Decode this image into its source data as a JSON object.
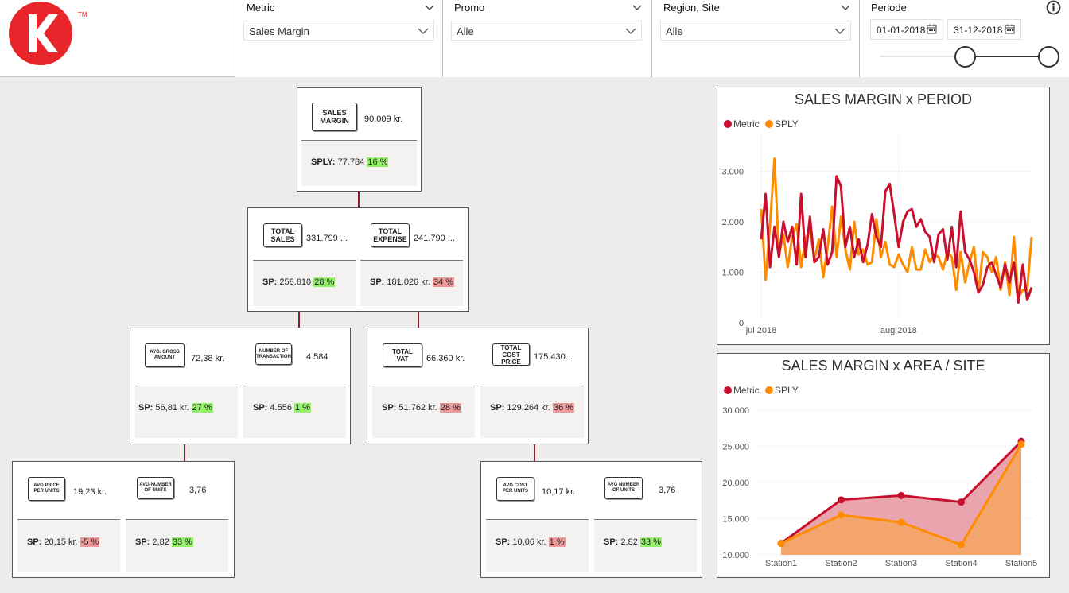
{
  "logo": {
    "mark": "K",
    "tm": "TM"
  },
  "slicers": {
    "metric": {
      "title": "Metric",
      "value": "Sales Margin"
    },
    "promo": {
      "title": "Promo",
      "value": "Alle"
    },
    "region": {
      "title": "Region, Site",
      "value": "Alle"
    },
    "periode": {
      "title": "Periode",
      "start": "01-01-2018",
      "end": "31-12-2018"
    }
  },
  "tree": {
    "root": {
      "tag": "SALES MARGIN",
      "value": "90.009 kr.",
      "sp_label": "SPLY:",
      "sp_value": "77.784",
      "pct": "16 %"
    },
    "total_sales": {
      "tag": "TOTAL SALES",
      "value": "331.799 ...",
      "sp_label": "SP:",
      "sp_value": "258.810",
      "pct": "28 %"
    },
    "total_expense": {
      "tag": "TOTAL EXPENSE",
      "value": "241.790 ...",
      "sp_label": "SP:",
      "sp_value": "181.026 kr.",
      "pct": "34 %"
    },
    "avg_gross": {
      "tag": "AVG. GROSS AMOUNT",
      "value": "72,38 kr.",
      "sp_label": "SP:",
      "sp_value": "56,81 kr.",
      "pct": "27 %"
    },
    "num_trans": {
      "tag": "NUMBER OF TRANSACTION",
      "value": "4.584",
      "sp_label": "SP:",
      "sp_value": "4.556",
      "pct": "1 %"
    },
    "total_vat": {
      "tag": "TOTAL VAT",
      "value": "66.360 kr.",
      "sp_label": "SP:",
      "sp_value": "51.762 kr.",
      "pct": "28 %"
    },
    "total_cost": {
      "tag": "TOTAL COST PRICE",
      "value": "175.430...",
      "sp_label": "SP:",
      "sp_value": "129.264 kr.",
      "pct": "36 %"
    },
    "avg_price": {
      "tag": "AVG PRICE PER UNITS",
      "value": "19,23 kr.",
      "sp_label": "SP:",
      "sp_value": "20,15 kr.",
      "pct": "-5 %"
    },
    "avg_units_l": {
      "tag": "AVG NUMBER OF UNITS",
      "value": "3,76",
      "sp_label": "SP:",
      "sp_value": "2,82",
      "pct": "33 %"
    },
    "avg_cost": {
      "tag": "AVG COST PER UNITS",
      "value": "10,17 kr.",
      "sp_label": "SP:",
      "sp_value": "10,06 kr.",
      "pct": "1 %"
    },
    "avg_units_r": {
      "tag": "AVG NUMBER OF UNITS",
      "value": "3,76",
      "sp_label": "SP:",
      "sp_value": "2,82",
      "pct": "33 %"
    }
  },
  "colors": {
    "metric": "#c8102e",
    "sply": "#ff8c00",
    "positive": "#94f06a",
    "negative": "#ee9a9a",
    "connector": "#8b1a2b"
  },
  "chart_data": [
    {
      "type": "line",
      "title": "SALES MARGIN x PERIOD",
      "legend": [
        "Metric",
        "SPLY"
      ],
      "xlabel": "",
      "ylabel": "",
      "x_ticks": [
        "jul 2018",
        "aug 2018"
      ],
      "y_ticks": [
        "0",
        "1.000",
        "2.000",
        "3.000"
      ],
      "ylim": [
        0,
        3400
      ],
      "grid": true,
      "legend_position": "top-left",
      "x": [
        "2018-07-01",
        "2018-07-02",
        "2018-07-03",
        "2018-07-04",
        "2018-07-05",
        "2018-07-06",
        "2018-07-07",
        "2018-07-08",
        "2018-07-09",
        "2018-07-10",
        "2018-07-11",
        "2018-07-12",
        "2018-07-13",
        "2018-07-14",
        "2018-07-15",
        "2018-07-16",
        "2018-07-17",
        "2018-07-18",
        "2018-07-19",
        "2018-07-20",
        "2018-07-21",
        "2018-07-22",
        "2018-07-23",
        "2018-07-24",
        "2018-07-25",
        "2018-07-26",
        "2018-07-27",
        "2018-07-28",
        "2018-07-29",
        "2018-07-30",
        "2018-07-31",
        "2018-08-01",
        "2018-08-02",
        "2018-08-03",
        "2018-08-04",
        "2018-08-05",
        "2018-08-06",
        "2018-08-07",
        "2018-08-08",
        "2018-08-09",
        "2018-08-10",
        "2018-08-11",
        "2018-08-12",
        "2018-08-13",
        "2018-08-14",
        "2018-08-15",
        "2018-08-16",
        "2018-08-17",
        "2018-08-18",
        "2018-08-19",
        "2018-08-20",
        "2018-08-21",
        "2018-08-22",
        "2018-08-23",
        "2018-08-24",
        "2018-08-25",
        "2018-08-26",
        "2018-08-27",
        "2018-08-28",
        "2018-08-29",
        "2018-08-30",
        "2018-08-31"
      ],
      "series": [
        {
          "name": "Metric",
          "values": [
            1650,
            2550,
            1100,
            1900,
            1300,
            2000,
            1600,
            1900,
            1150,
            2550,
            1300,
            2100,
            1200,
            1300,
            1850,
            1150,
            1400,
            2900,
            2700,
            1500,
            1900,
            1300,
            1650,
            1200,
            1550,
            2150,
            1700,
            1500,
            2600,
            2750,
            2150,
            1500,
            2000,
            2200,
            2250,
            1900,
            2050,
            1800,
            1700,
            1200,
            1750,
            1850,
            1250,
            1900,
            1100,
            2200,
            1400,
            1250,
            1000,
            600,
            750,
            1100,
            1200,
            950,
            700,
            1150,
            800,
            1200,
            400,
            1150,
            450,
            700
          ]
        },
        {
          "name": "SPLY",
          "values": [
            2250,
            850,
            1950,
            3250,
            1350,
            1750,
            1100,
            1700,
            1950,
            1100,
            1650,
            1850,
            1250,
            1650,
            900,
            1500,
            2300,
            1300,
            2100,
            1450,
            1050,
            2000,
            1350,
            1450,
            1150,
            1200,
            2050,
            1300,
            1600,
            1150,
            1100,
            1350,
            1150,
            1000,
            1500,
            1050,
            1050,
            1450,
            1200,
            1350,
            1300,
            1050,
            1400,
            1300,
            650,
            1400,
            800,
            1200,
            1500,
            600,
            1400,
            1300,
            1000,
            1300,
            650,
            1200,
            550,
            1700,
            500,
            650,
            650,
            1700
          ]
        }
      ]
    },
    {
      "type": "area",
      "title": "SALES MARGIN x AREA / SITE",
      "legend": [
        "Metric",
        "SPLY"
      ],
      "xlabel": "",
      "ylabel": "",
      "categories": [
        "Station1",
        "Station2",
        "Station3",
        "Station4",
        "Station5"
      ],
      "y_ticks": [
        "10.000",
        "15.000",
        "20.000",
        "25.000",
        "30.000"
      ],
      "ylim": [
        10000,
        30000
      ],
      "grid": true,
      "legend_position": "top-left",
      "series": [
        {
          "name": "Metric",
          "values": [
            11600,
            17600,
            18200,
            17300,
            25700
          ]
        },
        {
          "name": "SPLY",
          "values": [
            11600,
            15500,
            14500,
            11400,
            25300
          ]
        }
      ]
    }
  ]
}
